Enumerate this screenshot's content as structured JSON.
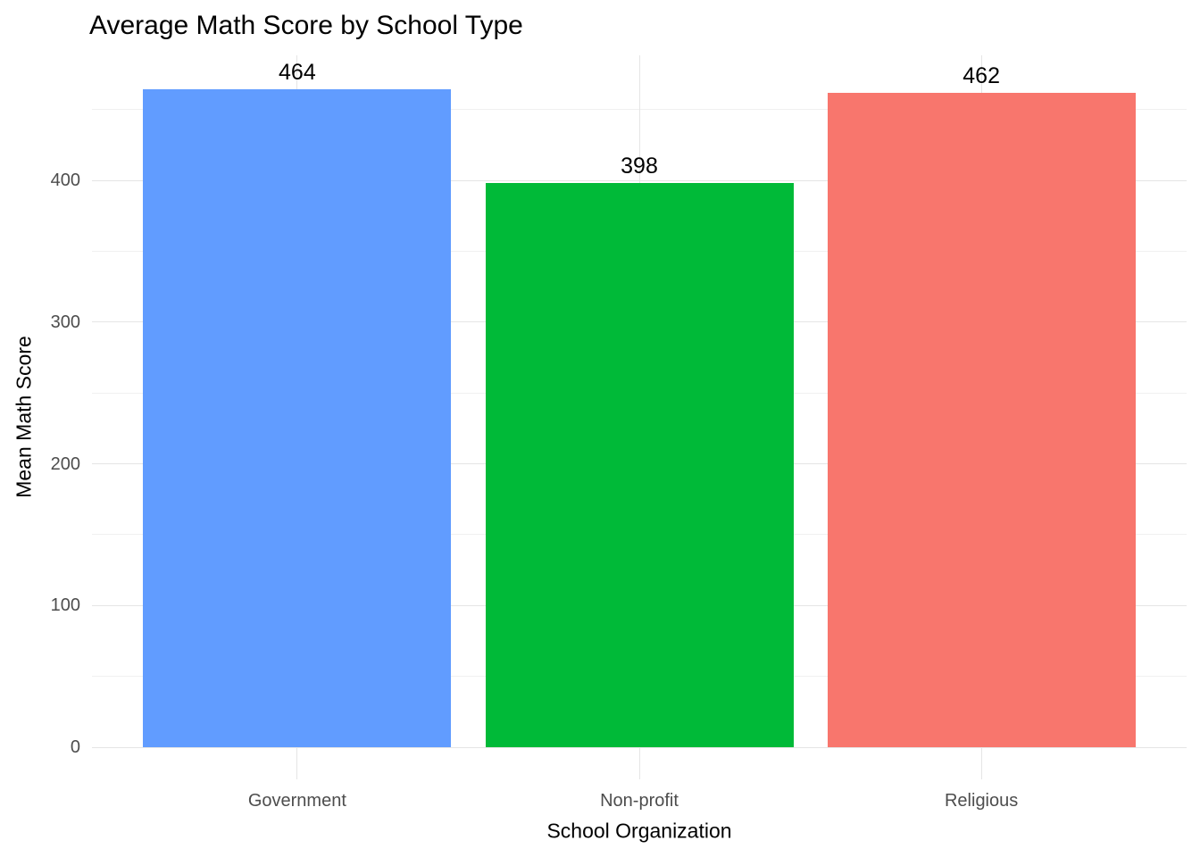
{
  "chart_data": {
    "type": "bar",
    "title": "Average Math Score by School Type",
    "xlabel": "School Organization",
    "ylabel": "Mean Math Score",
    "categories": [
      "Government",
      "Non-profit",
      "Religious"
    ],
    "values": [
      464,
      398,
      462
    ],
    "bar_labels": [
      "464",
      "398",
      "462"
    ],
    "bar_colors": [
      "#619CFF",
      "#00BA38",
      "#F8766D"
    ],
    "yticks_major": [
      0,
      100,
      200,
      300,
      400
    ],
    "yticks_minor": [
      50,
      150,
      250,
      350,
      450
    ],
    "ylim": [
      0,
      488
    ],
    "grid": "major+minor horizontal, major vertical at category centers",
    "legend": "none",
    "colors": {
      "background": "#FFFFFF",
      "title_text": "#000000",
      "axis_title_text": "#000000",
      "tick_label_text": "#4D4D4D",
      "bar_label_text": "#000000",
      "grid_major": "#E5E5E5",
      "grid_minor": "#F0F0F0"
    }
  }
}
